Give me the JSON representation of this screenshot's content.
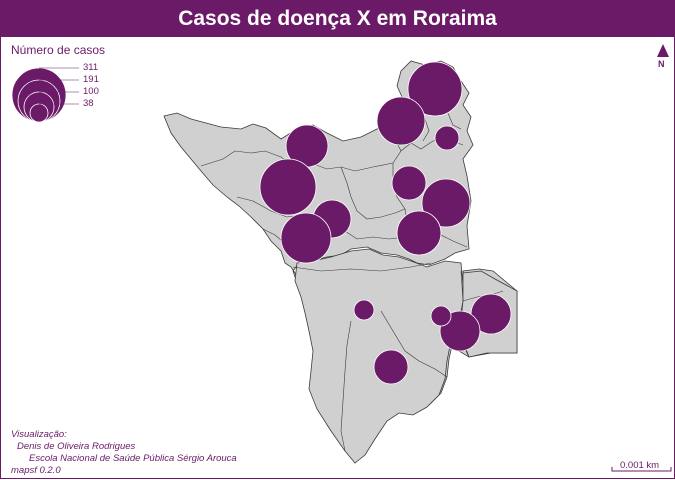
{
  "title": "Casos de doença X em Roraima",
  "legend": {
    "title": "Número de casos",
    "values": [
      "311",
      "191",
      "100",
      "38"
    ]
  },
  "credits": {
    "line1": "Visualização:",
    "line2": "Denis de Oliveira Rodrigues",
    "line3": "Escola Nacional de Saúde Pública Sérgio Arouca",
    "line4": "mapsf 0.2.0"
  },
  "north_label": "N",
  "scale_label": "0.001 km",
  "colors": {
    "accent": "#6b1a68",
    "land": "#d0d0d0",
    "border": "#3a3a3a"
  }
}
